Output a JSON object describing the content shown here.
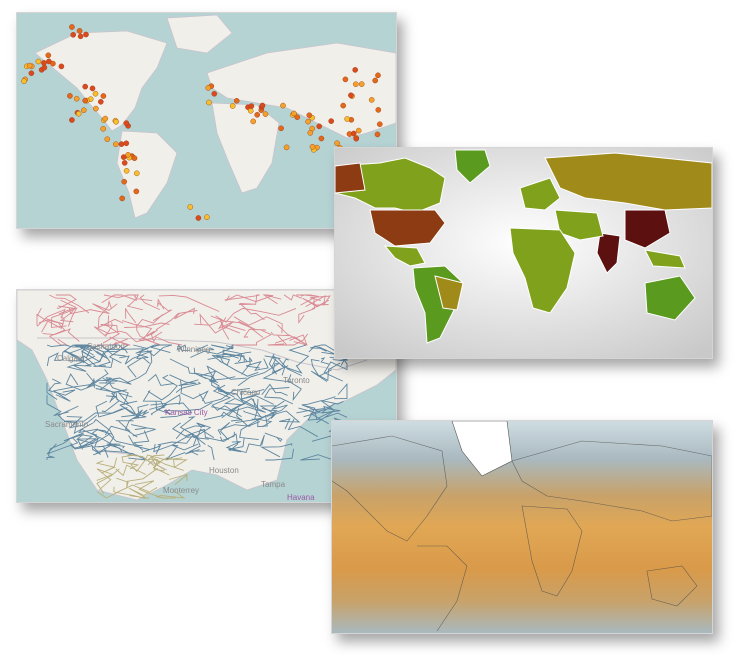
{
  "colors": {
    "ocean": "#b6d3d4",
    "land": "#f1efe9",
    "border": "#c9c3cc",
    "rail_us": "#5d86a0",
    "rail_ca": "#d98a94",
    "rail_mx": "#b8b07c",
    "choropleth_bg": "#e6e6e6",
    "heat_warm": "#d99a4a",
    "heat_cold": "#9fbccb"
  },
  "earthquake_map": {
    "marker_colors": [
      "#d94a1f",
      "#e2681c",
      "#f2a22a",
      "#f5c02c"
    ]
  },
  "rail_map": {
    "labels": [
      "Saskatoon",
      "Calgary",
      "Winnipeg",
      "Sacramento",
      "Kansas City",
      "Monterrey",
      "Houston",
      "Havana",
      "Tampa",
      "Toronto",
      "Chicago"
    ]
  },
  "choropleth_map": {
    "palette": [
      "#5a9a1e",
      "#7fa11b",
      "#a08a1a",
      "#8c3b12",
      "#5c1010"
    ]
  },
  "heat_map": {
    "palette": [
      "#e1a754",
      "#c8a26a",
      "#a9b9bf",
      "#cfdde2",
      "#ffffff"
    ]
  }
}
